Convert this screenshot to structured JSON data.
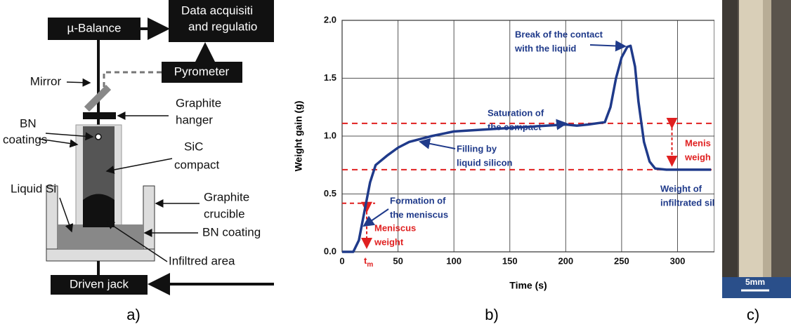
{
  "diagram": {
    "balance": "µ-Balance",
    "data_box": [
      "Data acquisiti",
      "and regulatio"
    ],
    "pyrometer": "Pyrometer",
    "mirror": "Mirror",
    "hanger": [
      "Graphite",
      "hanger"
    ],
    "bn_coatings": [
      "BN",
      "coatings"
    ],
    "compact": [
      "SiC",
      "compact"
    ],
    "liquid_si": "Liquid Si",
    "crucible": [
      "Graphite",
      "crucible"
    ],
    "bn_coating": "BN coating",
    "infiltred": "Infiltred area",
    "jack": "Driven jack"
  },
  "chart_data": {
    "type": "line",
    "x_label": "Time (s)",
    "y_label": "Weight gain (g)",
    "x": [
      0,
      10,
      15,
      20,
      25,
      30,
      40,
      50,
      60,
      80,
      100,
      150,
      200,
      210,
      220,
      235,
      240,
      245,
      250,
      255,
      258,
      262,
      265,
      270,
      275,
      280,
      290,
      330
    ],
    "series": [
      {
        "name": "Weight gain",
        "color": "#1f3a8a",
        "values": [
          0,
          0,
          0.1,
          0.35,
          0.6,
          0.75,
          0.83,
          0.9,
          0.95,
          1.0,
          1.04,
          1.07,
          1.1,
          1.09,
          1.1,
          1.12,
          1.25,
          1.5,
          1.68,
          1.77,
          1.78,
          1.6,
          1.3,
          0.95,
          0.78,
          0.72,
          0.71,
          0.71
        ]
      }
    ],
    "xlim": [
      0,
      333
    ],
    "ylim": [
      0,
      2.0
    ],
    "xticks": [
      0,
      50,
      100,
      150,
      200,
      250,
      300
    ],
    "yticks": [
      {
        "value": 0,
        "label": "0.0"
      },
      0.5,
      {
        "value": 1,
        "label": "1.0"
      },
      1.5,
      {
        "value": 2,
        "label": "2.0"
      }
    ],
    "grid": true,
    "reference_lines": [
      1.11,
      0.71
    ],
    "reference_color": "#e02020",
    "meniscus_x": 22,
    "meniscus_y": 0.42,
    "right_arrow_x": 295,
    "annotations": [
      {
        "lines": [
          "Break of the contact",
          "with the liquid"
        ],
        "color": "#1f3a8a"
      },
      {
        "lines": [
          "Saturation of",
          "the compact"
        ],
        "color": "#1f3a8a"
      },
      {
        "lines": [
          "Filling by",
          "liquid silicon"
        ],
        "color": "#1f3a8a"
      },
      {
        "lines": [
          "Formation of",
          "the meniscus"
        ],
        "color": "#1f3a8a"
      },
      {
        "lines": [
          "Meniscus",
          "weight"
        ],
        "color": "#e02020"
      },
      {
        "lines": [
          "Menis",
          "weigh"
        ],
        "color": "#e02020"
      },
      {
        "lines": [
          "Weight of",
          "infiltrated sili"
        ],
        "color": "#1f3a8a"
      }
    ],
    "tm_label": {
      "base": "t",
      "sub": "m"
    }
  },
  "photo": {
    "scale": "5mm"
  },
  "panel_labels": [
    "a)",
    "b)",
    "c)"
  ]
}
